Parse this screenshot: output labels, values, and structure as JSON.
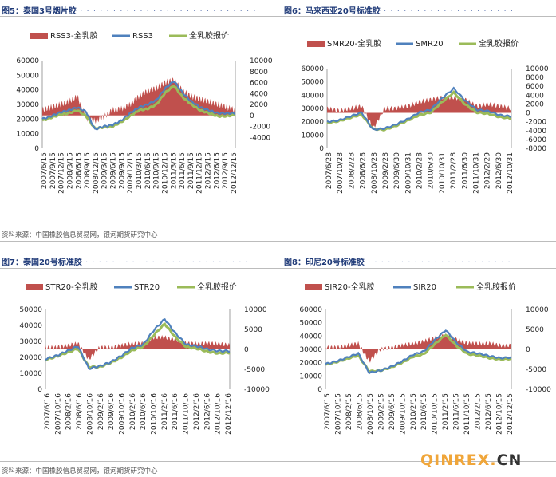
{
  "figures": [
    {
      "title": "图5：泰国3号烟片胶"
    },
    {
      "title": "图6：马来西亚20号标准胶"
    },
    {
      "title": "图7：泰国20号标准胶"
    },
    {
      "title": "图8：印尼20号标准胶"
    }
  ],
  "source_text": "资料来源：中国橡胶信息贸易网，银河期货研究中心",
  "watermark": {
    "main": "QINREX.",
    "suffix": "CN"
  },
  "colors": {
    "spread": "#c0504d",
    "rubber": "#4f81bd",
    "index": "#9bbb59"
  },
  "chart_data": [
    {
      "type": "line",
      "title": "图5：泰国3号烟片胶",
      "series": [
        {
          "name": "RSS3-全乳胶",
          "kind": "area",
          "axis": "right"
        },
        {
          "name": "RSS3",
          "kind": "line",
          "axis": "left"
        },
        {
          "name": "全乳胶报价",
          "kind": "line",
          "axis": "left"
        }
      ],
      "x_ticks": [
        "2007/6/15",
        "2007/9/15",
        "2007/12/15",
        "2008/3/15",
        "2008/6/15",
        "2008/9/15",
        "2008/12/15",
        "2009/3/15",
        "2009/6/15",
        "2009/9/15",
        "2009/12/15",
        "2010/3/15",
        "2010/6/15",
        "2010/9/15",
        "2010/12/15",
        "2011/3/15",
        "2011/6/15",
        "2011/9/15",
        "2011/12/15",
        "2012/3/15",
        "2012/6/15",
        "2012/9/15",
        "2012/12/15"
      ],
      "y_left": {
        "min": 0,
        "max": 60000,
        "ticks": [
          0,
          10000,
          20000,
          30000,
          40000,
          50000,
          60000
        ]
      },
      "y_right": {
        "min": -6000,
        "max": 10000,
        "ticks": [
          -4000,
          -2000,
          0,
          2000,
          4000,
          6000,
          8000,
          10000
        ]
      },
      "x": [
        "2007/6",
        "2007/9",
        "2007/12",
        "2008/3",
        "2008/6",
        "2008/9",
        "2008/12",
        "2009/3",
        "2009/6",
        "2009/9",
        "2009/12",
        "2010/3",
        "2010/6",
        "2010/9",
        "2010/12",
        "2011/3",
        "2011/6",
        "2011/9",
        "2011/12",
        "2012/3",
        "2012/6",
        "2012/9",
        "2012/12"
      ],
      "primary": [
        20000,
        22000,
        24500,
        26000,
        28000,
        25000,
        13000,
        15000,
        16000,
        19000,
        24000,
        28000,
        30000,
        33000,
        41000,
        46000,
        38000,
        32000,
        28000,
        26000,
        24000,
        24000,
        24000
      ],
      "index": [
        19000,
        21000,
        23000,
        24000,
        26000,
        22000,
        13500,
        14500,
        15000,
        18000,
        22000,
        26000,
        27000,
        30000,
        38000,
        43000,
        35000,
        30000,
        26000,
        24000,
        22000,
        22000,
        23000
      ],
      "spread": [
        1000,
        1500,
        2000,
        2500,
        3500,
        -500,
        -1000,
        -300,
        1000,
        1200,
        2000,
        3500,
        4500,
        5000,
        6000,
        6500,
        4500,
        3500,
        3000,
        2500,
        2000,
        1500,
        1000
      ]
    },
    {
      "type": "line",
      "title": "图6：马来西亚20号标准胶",
      "series": [
        {
          "name": "SMR20-全乳胶",
          "kind": "area",
          "axis": "right"
        },
        {
          "name": "SMR20",
          "kind": "line",
          "axis": "left"
        },
        {
          "name": "全乳胶报价",
          "kind": "line",
          "axis": "left"
        }
      ],
      "x_ticks": [
        "2007/6/28",
        "2007/10/28",
        "2008/2/28",
        "2008/6/28",
        "2008/10/28",
        "2009/2/28",
        "2009/6/30",
        "2009/10/31",
        "2010/2/28",
        "2010/6/30",
        "2010/10/31",
        "2011/2/28",
        "2011/6/30",
        "2011/10/31",
        "2012/2/29",
        "2012/6/30",
        "2012/10/31"
      ],
      "y_left": {
        "min": 0,
        "max": 60000,
        "ticks": [
          0,
          10000,
          20000,
          30000,
          40000,
          50000,
          60000
        ]
      },
      "y_right": {
        "min": -8000,
        "max": 10000,
        "ticks": [
          -8000,
          -6000,
          -4000,
          -2000,
          0,
          2000,
          4000,
          6000,
          8000,
          10000
        ]
      },
      "x": [
        "2007/6",
        "2007/10",
        "2008/2",
        "2008/6",
        "2008/10",
        "2009/2",
        "2009/6",
        "2009/10",
        "2010/2",
        "2010/6",
        "2010/10",
        "2011/2",
        "2011/6",
        "2011/10",
        "2012/2",
        "2012/6",
        "2012/10"
      ],
      "primary": [
        20000,
        21000,
        24000,
        27000,
        14000,
        15000,
        18000,
        22000,
        27000,
        29000,
        38000,
        45000,
        36000,
        29000,
        28000,
        25000,
        24000
      ],
      "index": [
        19000,
        20500,
        23000,
        25500,
        14500,
        14000,
        17000,
        21000,
        25000,
        27000,
        35000,
        42000,
        33000,
        27000,
        26000,
        23500,
        22500
      ],
      "spread": [
        1000,
        500,
        1000,
        1500,
        -3500,
        1000,
        1000,
        1500,
        2500,
        3000,
        3500,
        3500,
        3000,
        1500,
        2000,
        1500,
        1000
      ]
    },
    {
      "type": "line",
      "title": "图7：泰国20号标准胶",
      "series": [
        {
          "name": "STR20-全乳胶",
          "kind": "area",
          "axis": "right"
        },
        {
          "name": "STR20",
          "kind": "line",
          "axis": "left"
        },
        {
          "name": "全乳胶报价",
          "kind": "line",
          "axis": "left"
        }
      ],
      "x_ticks": [
        "2007/6/16",
        "2007/10/16",
        "2008/2/16",
        "2008/6/16",
        "2008/10/16",
        "2009/2/16",
        "2009/6/16",
        "2009/10/16",
        "2010/2/16",
        "2010/6/16",
        "2010/10/16",
        "2011/2/16",
        "2011/6/16",
        "2011/10/16",
        "2012/2/16",
        "2012/6/16",
        "2012/10/16",
        "2012/12/16"
      ],
      "y_left": {
        "min": 0,
        "max": 50000,
        "ticks": [
          0,
          10000,
          20000,
          30000,
          40000,
          50000
        ]
      },
      "y_right": {
        "min": -10000,
        "max": 10000,
        "ticks": [
          -10000,
          -5000,
          0,
          5000,
          10000
        ]
      },
      "x": [
        "2007/6",
        "2007/10",
        "2008/2",
        "2008/6",
        "2008/10",
        "2009/2",
        "2009/6",
        "2009/10",
        "2010/2",
        "2010/6",
        "2010/10",
        "2011/2",
        "2011/6",
        "2011/10",
        "2012/2",
        "2012/6",
        "2012/10",
        "2012/12"
      ],
      "primary": [
        19000,
        21000,
        24000,
        27000,
        13000,
        14500,
        17000,
        21000,
        26000,
        28000,
        37000,
        44000,
        35000,
        28000,
        27000,
        25000,
        24000,
        24000
      ],
      "index": [
        18500,
        20500,
        23000,
        25500,
        14000,
        14000,
        16500,
        20000,
        24500,
        26500,
        34000,
        41000,
        32500,
        26500,
        25500,
        23500,
        22500,
        23000
      ],
      "spread": [
        500,
        500,
        1000,
        1500,
        -2500,
        500,
        500,
        1000,
        1500,
        1500,
        3000,
        3000,
        2500,
        1500,
        1500,
        1500,
        1500,
        1000
      ]
    },
    {
      "type": "line",
      "title": "图8：印尼20号标准胶",
      "series": [
        {
          "name": "SIR20-全乳胶",
          "kind": "area",
          "axis": "right"
        },
        {
          "name": "SIR20",
          "kind": "line",
          "axis": "left"
        },
        {
          "name": "全乳胶报价",
          "kind": "line",
          "axis": "left"
        }
      ],
      "x_ticks": [
        "2007/6/15",
        "2007/10/15",
        "2008/2/15",
        "2008/6/15",
        "2008/10/15",
        "2009/2/15",
        "2009/6/15",
        "2009/10/15",
        "2010/2/15",
        "2010/6/15",
        "2010/10/15",
        "2011/2/15",
        "2011/6/15",
        "2011/10/15",
        "2012/2/15",
        "2012/6/15",
        "2012/10/15",
        "2012/12/15"
      ],
      "y_left": {
        "min": 0,
        "max": 60000,
        "ticks": [
          0,
          10000,
          20000,
          30000,
          40000,
          50000,
          60000
        ]
      },
      "y_right": {
        "min": -10000,
        "max": 10000,
        "ticks": [
          -10000,
          -5000,
          0,
          5000,
          10000
        ]
      },
      "x": [
        "2007/6",
        "2007/10",
        "2008/2",
        "2008/6",
        "2008/10",
        "2009/2",
        "2009/6",
        "2009/10",
        "2010/2",
        "2010/6",
        "2010/10",
        "2011/2",
        "2011/6",
        "2011/10",
        "2012/2",
        "2012/6",
        "2012/10",
        "2012/12"
      ],
      "primary": [
        19000,
        21000,
        24000,
        27000,
        12500,
        14000,
        17000,
        21000,
        26000,
        28500,
        37000,
        44500,
        35000,
        28000,
        27000,
        25000,
        23500,
        24000
      ],
      "index": [
        18500,
        20500,
        23000,
        25500,
        13500,
        14000,
        16500,
        20000,
        24500,
        26500,
        34000,
        41000,
        32500,
        26500,
        25500,
        23500,
        22500,
        23000
      ],
      "spread": [
        500,
        500,
        1000,
        1500,
        -3000,
        0,
        500,
        1000,
        1500,
        2000,
        3000,
        3500,
        2500,
        1500,
        1500,
        1500,
        1000,
        1000
      ]
    }
  ]
}
